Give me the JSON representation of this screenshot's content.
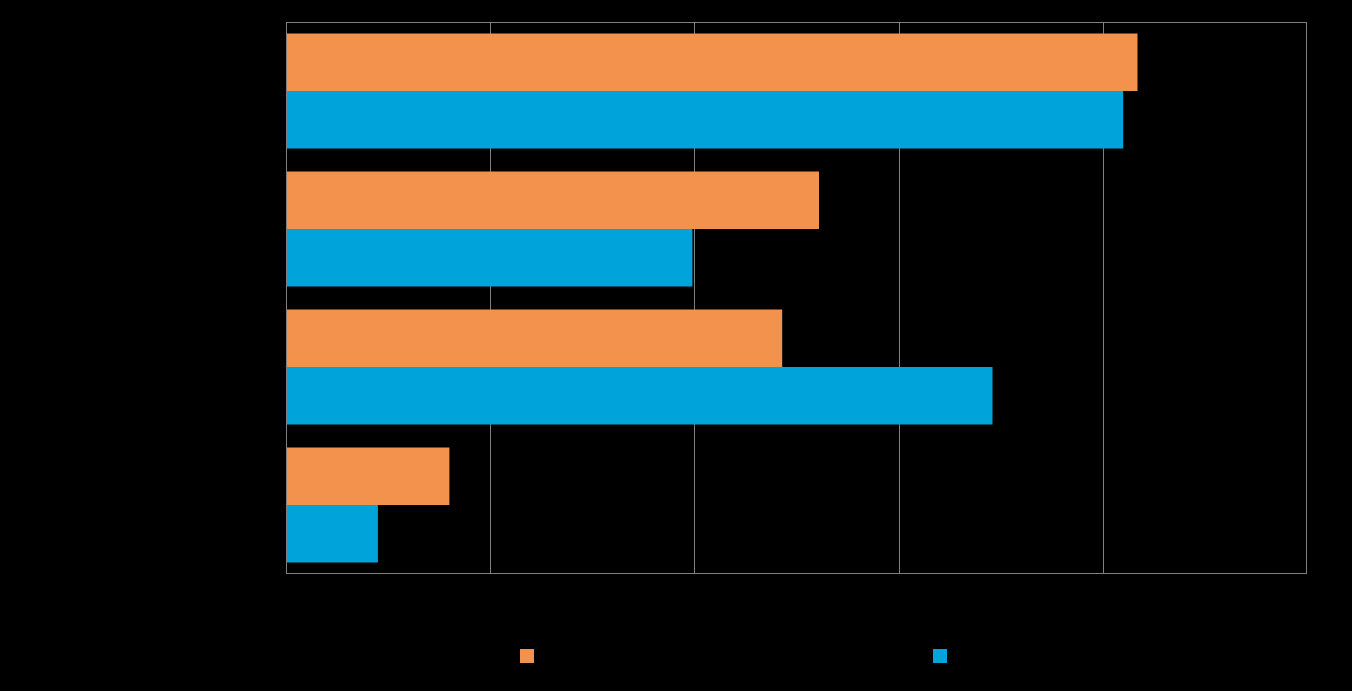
{
  "chart_data": {
    "type": "bar",
    "orientation": "horizontal",
    "categories": [
      "",
      "",
      "",
      ""
    ],
    "series": [
      {
        "color": "#f2924c",
        "values": [
          41.7,
          26.1,
          24.3,
          8.0
        ]
      },
      {
        "color": "#00a3da",
        "values": [
          41.0,
          19.9,
          34.6,
          4.5
        ]
      }
    ],
    "xlim": [
      0,
      50
    ],
    "grid": true,
    "legend_position": "bottom",
    "plot_border_color": "#808080",
    "gridline_color": "#808080"
  }
}
